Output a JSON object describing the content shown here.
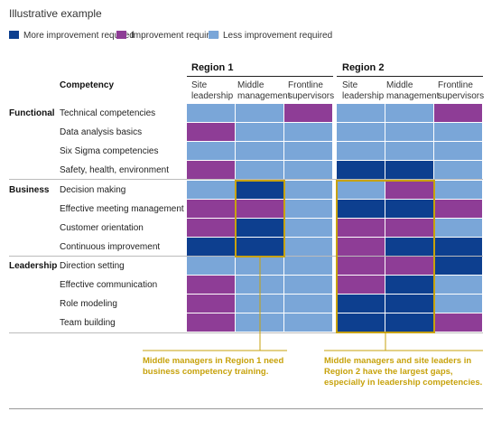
{
  "subtitle": "Illustrative example",
  "colors": {
    "more": "#0d3f8f",
    "improvement": "#8e3d96",
    "less": "#7aa6d8",
    "highlight": "#c7a20c"
  },
  "chart_data": {
    "type": "heatmap",
    "legend": [
      {
        "key": "more",
        "label": "More improvement required"
      },
      {
        "key": "improvement",
        "label": "Improvement required"
      },
      {
        "key": "less",
        "label": "Less improvement required"
      }
    ],
    "row_header": "Competency",
    "regions": [
      {
        "name": "Region 1",
        "columns": [
          "Site leadership",
          "Middle management",
          "Frontline supervisors"
        ]
      },
      {
        "name": "Region 2",
        "columns": [
          "Site leadership",
          "Middle management",
          "Frontline supervisors"
        ]
      }
    ],
    "column_header_lines": [
      [
        "Site",
        "leadership"
      ],
      [
        "Middle",
        "management"
      ],
      [
        "Frontline",
        "supervisors"
      ]
    ],
    "groups": [
      {
        "name": "Functional",
        "rows": [
          "Technical competencies",
          "Data analysis basics",
          "Six Sigma competencies",
          "Safety, health, environment"
        ]
      },
      {
        "name": "Business",
        "rows": [
          "Decision making",
          "Effective meeting management",
          "Customer orientation",
          "Continuous improvement"
        ]
      },
      {
        "name": "Leadership",
        "rows": [
          "Direction setting",
          "Effective communication",
          "Role modeling",
          "Team building"
        ]
      }
    ],
    "cells": [
      [
        "less",
        "less",
        "improvement",
        "less",
        "less",
        "improvement"
      ],
      [
        "improvement",
        "less",
        "less",
        "less",
        "less",
        "less"
      ],
      [
        "less",
        "less",
        "less",
        "less",
        "less",
        "less"
      ],
      [
        "improvement",
        "less",
        "less",
        "more",
        "more",
        "less"
      ],
      [
        "less",
        "more",
        "less",
        "less",
        "improvement",
        "less"
      ],
      [
        "improvement",
        "improvement",
        "less",
        "more",
        "more",
        "improvement"
      ],
      [
        "improvement",
        "more",
        "less",
        "improvement",
        "improvement",
        "less"
      ],
      [
        "more",
        "more",
        "less",
        "improvement",
        "more",
        "more"
      ],
      [
        "less",
        "less",
        "less",
        "improvement",
        "improvement",
        "more"
      ],
      [
        "improvement",
        "less",
        "less",
        "improvement",
        "more",
        "less"
      ],
      [
        "improvement",
        "less",
        "less",
        "more",
        "more",
        "less"
      ],
      [
        "improvement",
        "less",
        "less",
        "more",
        "more",
        "improvement"
      ]
    ],
    "highlights": [
      {
        "region": "Region 1",
        "columns": [
          "Middle management"
        ],
        "rows": "Decision making – Continuous improvement"
      },
      {
        "region": "Region 2",
        "columns": [
          "Site leadership",
          "Middle management"
        ],
        "rows": "Decision making – Team building"
      }
    ]
  },
  "callouts": [
    {
      "lines": [
        "Middle managers in Region 1 need",
        "business competency training."
      ]
    },
    {
      "lines": [
        "Middle managers and site leaders in",
        "Region 2 have the largest gaps,",
        "especially in leadership competencies."
      ]
    }
  ]
}
